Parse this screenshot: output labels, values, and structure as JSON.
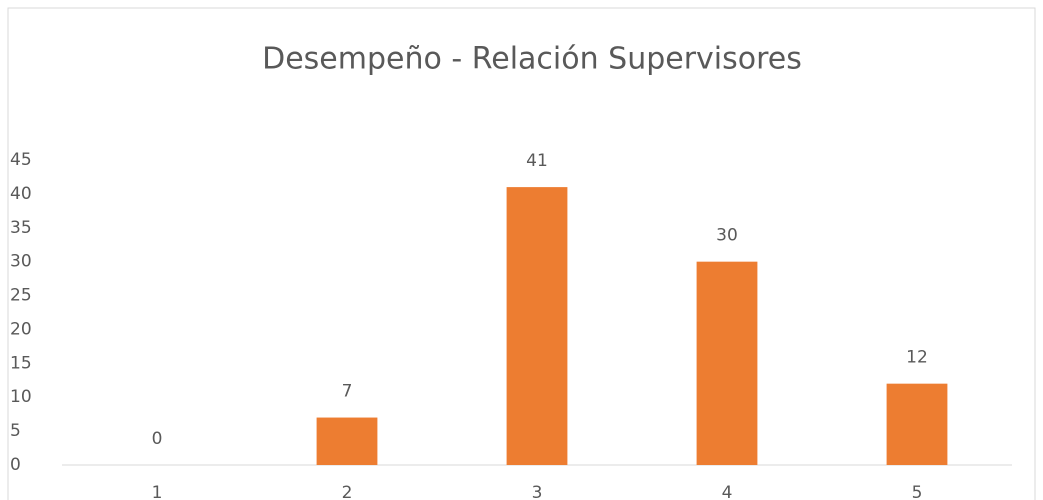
{
  "chart_data": {
    "type": "bar",
    "title": "Desempeño - Relación Supervisores",
    "categories": [
      "1",
      "2",
      "3",
      "4",
      "5"
    ],
    "values": [
      0,
      7,
      41,
      30,
      12
    ],
    "color": "#ed7d31",
    "ylim": [
      0,
      45
    ],
    "yticks": [
      0,
      5,
      10,
      15,
      20,
      25,
      30,
      35,
      40,
      45
    ],
    "grid": false,
    "data_labels": true
  }
}
